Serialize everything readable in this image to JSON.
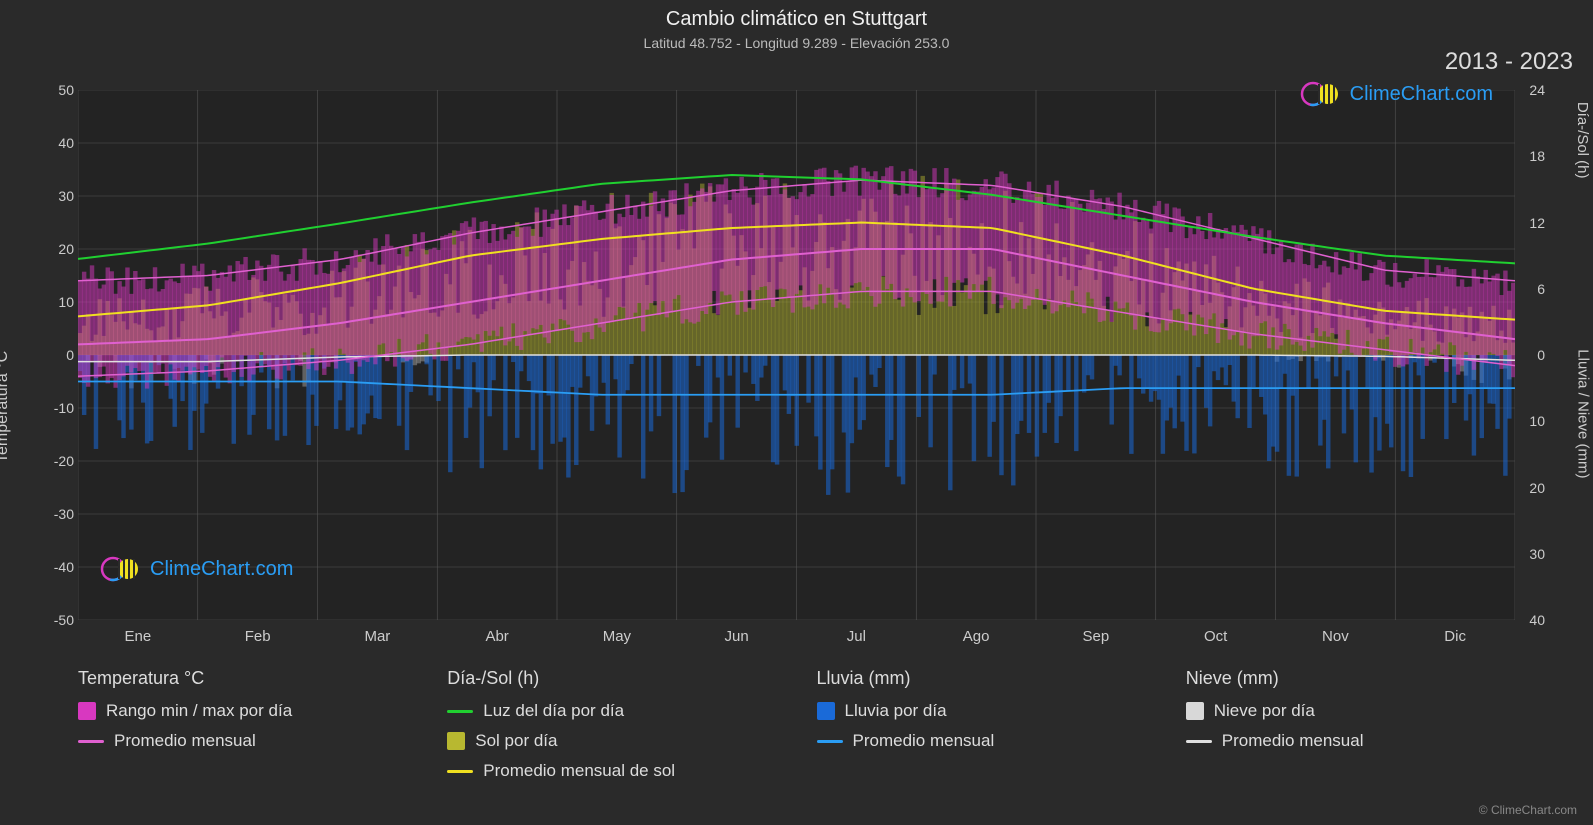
{
  "title": "Cambio climático en Stuttgart",
  "subtitle": "Latitud 48.752 - Longitud 9.289 - Elevación 253.0",
  "year_range": "2013 - 2023",
  "copyright": "© ClimeChart.com",
  "logo_text": "ClimeChart.com",
  "chart": {
    "type": "climate-multiaxis",
    "background_color": "#2a2a2a",
    "plot_background": "#1f1f1f",
    "grid_color": "#555555",
    "months": [
      "Ene",
      "Feb",
      "Mar",
      "Abr",
      "May",
      "Jun",
      "Jul",
      "Ago",
      "Sep",
      "Oct",
      "Nov",
      "Dic"
    ],
    "left_axis": {
      "label": "Temperatura °C",
      "min": -50,
      "max": 50,
      "step": 10,
      "ticks": [
        -50,
        -40,
        -30,
        -20,
        -10,
        0,
        10,
        20,
        30,
        40,
        50
      ]
    },
    "right_axis_top": {
      "label": "Día-/Sol (h)",
      "min": 0,
      "max": 24,
      "step": 6,
      "ticks": [
        0,
        6,
        12,
        18,
        24
      ]
    },
    "right_axis_bot": {
      "label": "Lluvia / Nieve (mm)",
      "min": 0,
      "max": 40,
      "step": 10,
      "ticks": [
        0,
        10,
        20,
        30,
        40
      ]
    },
    "series": {
      "temp_range_bars": {
        "color": "#d838c0",
        "opacity": 0.5,
        "min_by_month": [
          -4,
          -3,
          -1,
          2,
          6,
          10,
          12,
          12,
          8,
          4,
          1,
          -2
        ],
        "max_by_month": [
          14,
          15,
          18,
          23,
          27,
          31,
          33,
          32,
          28,
          22,
          16,
          14
        ]
      },
      "temp_avg_line": {
        "color": "#e060d0",
        "width": 2,
        "values": [
          2,
          3,
          6,
          10,
          14,
          18,
          20,
          20,
          15,
          10,
          6,
          3
        ]
      },
      "daylight_line": {
        "color": "#20d030",
        "width": 2,
        "values_h": [
          8.7,
          10.1,
          11.9,
          13.8,
          15.5,
          16.3,
          15.9,
          14.5,
          12.6,
          10.7,
          9.0,
          8.3
        ]
      },
      "sun_avg_line": {
        "color": "#f0e020",
        "width": 2,
        "values_h": [
          3.5,
          4.5,
          6.5,
          9,
          10.5,
          11.5,
          12,
          11.5,
          9,
          6,
          4,
          3.2
        ]
      },
      "sun_bars": {
        "color": "#b8b830",
        "opacity": 0.45
      },
      "rain_bars": {
        "color": "#1a6ad8",
        "opacity": 0.55
      },
      "rain_avg_line": {
        "color": "#2a9df4",
        "width": 1.8,
        "values_mm": [
          4,
          4,
          4,
          5,
          6,
          6,
          6,
          6,
          5,
          5,
          5,
          5
        ]
      },
      "snow_bars": {
        "color": "#d8d8d8",
        "opacity": 0.35
      },
      "snow_avg_line": {
        "color": "#e0e0e0",
        "width": 1.5,
        "values_mm": [
          1,
          1,
          0.3,
          0,
          0,
          0,
          0,
          0,
          0,
          0,
          0.2,
          0.8
        ]
      }
    }
  },
  "legend": {
    "groups": [
      {
        "header": "Temperatura °C",
        "items": [
          {
            "kind": "swatch",
            "color": "#d838c0",
            "label": "Rango min / max por día"
          },
          {
            "kind": "line",
            "color": "#e060d0",
            "label": "Promedio mensual"
          }
        ]
      },
      {
        "header": "Día-/Sol (h)",
        "items": [
          {
            "kind": "line",
            "color": "#20d030",
            "label": "Luz del día por día"
          },
          {
            "kind": "swatch",
            "color": "#b8b830",
            "label": "Sol por día"
          },
          {
            "kind": "line",
            "color": "#f0e020",
            "label": "Promedio mensual de sol"
          }
        ]
      },
      {
        "header": "Lluvia (mm)",
        "items": [
          {
            "kind": "swatch",
            "color": "#1a6ad8",
            "label": "Lluvia por día"
          },
          {
            "kind": "line",
            "color": "#2a9df4",
            "label": "Promedio mensual"
          }
        ]
      },
      {
        "header": "Nieve (mm)",
        "items": [
          {
            "kind": "swatch",
            "color": "#d8d8d8",
            "label": "Nieve por día"
          },
          {
            "kind": "line",
            "color": "#e0e0e0",
            "label": "Promedio mensual"
          }
        ]
      }
    ]
  }
}
